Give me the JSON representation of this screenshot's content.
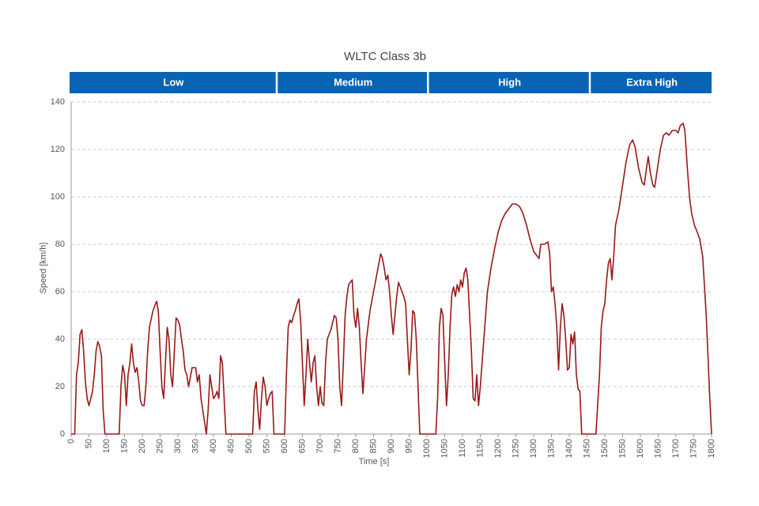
{
  "chart_data": {
    "type": "line",
    "title": "WLTC Class 3b",
    "x_label": "Time [s]",
    "y_label": "Speed [km/h]",
    "phases": [
      {
        "label": "Low",
        "start": 0,
        "end": 575
      },
      {
        "label": "Medium",
        "start": 585,
        "end": 1000
      },
      {
        "label": "High",
        "start": 1010,
        "end": 1455
      },
      {
        "label": "Extra High",
        "start": 1465,
        "end": 1800
      }
    ],
    "phase_color": "#0a63b3",
    "x": [
      0,
      10,
      15,
      20,
      25,
      30,
      35,
      40,
      45,
      50,
      55,
      60,
      65,
      70,
      75,
      80,
      85,
      90,
      95,
      135,
      140,
      145,
      150,
      155,
      160,
      165,
      170,
      175,
      180,
      185,
      190,
      195,
      200,
      205,
      210,
      215,
      220,
      230,
      240,
      245,
      250,
      255,
      260,
      265,
      270,
      275,
      280,
      285,
      290,
      295,
      300,
      305,
      310,
      315,
      320,
      325,
      330,
      335,
      340,
      350,
      355,
      360,
      365,
      370,
      375,
      380,
      385,
      390,
      395,
      400,
      405,
      410,
      415,
      420,
      425,
      430,
      435,
      510,
      515,
      520,
      525,
      530,
      535,
      540,
      545,
      550,
      555,
      560,
      565,
      570,
      590,
      600,
      605,
      610,
      615,
      620,
      625,
      630,
      635,
      640,
      645,
      650,
      655,
      660,
      665,
      670,
      675,
      680,
      685,
      690,
      695,
      700,
      705,
      710,
      715,
      720,
      730,
      740,
      745,
      750,
      755,
      760,
      765,
      770,
      775,
      780,
      790,
      795,
      800,
      805,
      810,
      815,
      820,
      825,
      830,
      840,
      850,
      860,
      865,
      870,
      875,
      880,
      885,
      890,
      895,
      900,
      905,
      910,
      915,
      920,
      925,
      930,
      935,
      940,
      945,
      950,
      955,
      960,
      965,
      970,
      975,
      980,
      1020,
      1025,
      1030,
      1035,
      1040,
      1045,
      1050,
      1055,
      1060,
      1065,
      1070,
      1075,
      1080,
      1085,
      1090,
      1095,
      1100,
      1105,
      1110,
      1115,
      1120,
      1125,
      1130,
      1135,
      1140,
      1145,
      1150,
      1160,
      1170,
      1180,
      1190,
      1200,
      1210,
      1220,
      1230,
      1240,
      1250,
      1260,
      1270,
      1280,
      1290,
      1300,
      1310,
      1315,
      1320,
      1330,
      1340,
      1345,
      1350,
      1355,
      1360,
      1365,
      1370,
      1375,
      1380,
      1385,
      1390,
      1395,
      1400,
      1405,
      1410,
      1415,
      1420,
      1425,
      1430,
      1435,
      1465,
      1475,
      1485,
      1490,
      1495,
      1500,
      1505,
      1510,
      1515,
      1520,
      1525,
      1530,
      1540,
      1550,
      1560,
      1570,
      1578,
      1585,
      1595,
      1605,
      1611,
      1617,
      1622,
      1628,
      1635,
      1640,
      1648,
      1656,
      1665,
      1673,
      1680,
      1690,
      1700,
      1706,
      1712,
      1720,
      1725,
      1732,
      1738,
      1744,
      1752,
      1760,
      1767,
      1775,
      1785,
      1795,
      1800
    ],
    "series": [
      {
        "name": "Speed",
        "color": "#9a1818",
        "values": [
          0,
          0,
          25,
          30,
          42,
          44,
          35,
          22,
          15,
          12,
          15,
          18,
          25,
          35,
          39,
          37,
          33,
          10,
          0,
          0,
          20,
          29,
          25,
          12,
          25,
          30,
          38,
          30,
          26,
          28,
          22,
          14,
          12,
          12,
          20,
          35,
          45,
          52,
          56,
          52,
          35,
          20,
          15,
          30,
          45,
          40,
          25,
          20,
          35,
          49,
          48,
          46,
          40,
          35,
          27,
          25,
          20,
          24,
          28,
          28,
          22,
          25,
          15,
          10,
          5,
          0,
          10,
          25,
          20,
          15,
          16,
          18,
          15,
          33,
          30,
          15,
          0,
          0,
          18,
          22,
          10,
          2,
          15,
          24,
          20,
          12,
          15,
          17,
          18,
          0,
          0,
          0,
          25,
          45,
          48,
          47,
          50,
          52,
          55,
          57,
          48,
          30,
          12,
          25,
          40,
          30,
          22,
          30,
          33,
          20,
          12,
          20,
          13,
          12,
          30,
          40,
          44,
          50,
          49,
          40,
          20,
          12,
          30,
          50,
          58,
          63,
          65,
          50,
          45,
          53,
          45,
          30,
          17,
          28,
          40,
          52,
          60,
          68,
          72,
          76,
          74,
          70,
          65,
          67,
          60,
          50,
          42,
          50,
          58,
          64,
          62,
          60,
          58,
          55,
          40,
          25,
          35,
          52,
          51,
          40,
          20,
          0,
          0,
          0,
          15,
          45,
          53,
          50,
          30,
          12,
          25,
          45,
          59,
          62,
          58,
          63,
          60,
          65,
          62,
          68,
          70,
          65,
          50,
          35,
          15,
          14,
          25,
          12,
          20,
          40,
          60,
          70,
          78,
          85,
          90,
          93,
          95,
          97,
          97,
          96,
          93,
          88,
          82,
          77,
          75,
          74,
          80,
          80,
          81,
          76,
          60,
          62,
          55,
          45,
          27,
          45,
          55,
          50,
          40,
          27,
          28,
          42,
          38,
          43,
          25,
          19,
          18,
          0,
          0,
          0,
          25,
          45,
          52,
          55,
          65,
          72,
          74,
          65,
          75,
          88,
          95,
          105,
          115,
          122,
          124,
          121,
          112,
          106,
          105,
          112,
          117,
          110,
          105,
          104,
          112,
          120,
          126,
          127,
          126,
          128,
          128,
          127,
          130,
          131,
          128,
          112,
          100,
          93,
          88,
          85,
          82,
          75,
          50,
          15,
          0
        ]
      }
    ],
    "xlim": [
      0,
      1800
    ],
    "ylim": [
      0,
      140
    ],
    "xticks": [
      0,
      50,
      100,
      150,
      200,
      250,
      300,
      350,
      400,
      450,
      500,
      550,
      600,
      650,
      700,
      750,
      800,
      850,
      900,
      950,
      1000,
      1050,
      1100,
      1150,
      1200,
      1250,
      1300,
      1350,
      1400,
      1450,
      1500,
      1550,
      1600,
      1650,
      1700,
      1750,
      1800
    ],
    "yticks": [
      0,
      20,
      40,
      60,
      80,
      100,
      120,
      140
    ],
    "grid": true
  }
}
